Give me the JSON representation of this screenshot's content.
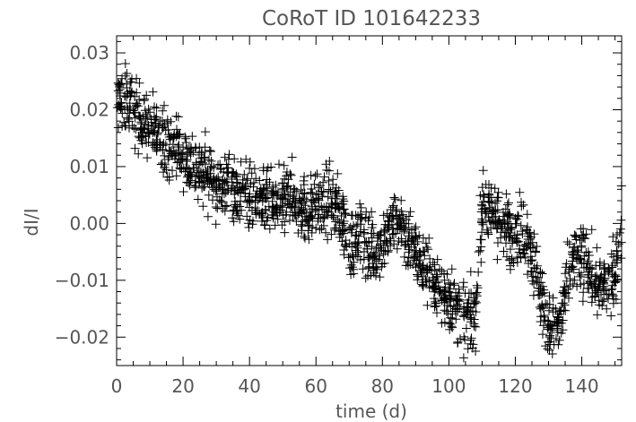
{
  "chart_data": {
    "type": "scatter",
    "title": "CoRoT ID 101642233",
    "xlabel": "time (d)",
    "ylabel": "dI/I",
    "xlim": [
      0,
      152
    ],
    "ylim": [
      -0.025,
      0.033
    ],
    "xticks": [
      0,
      20,
      40,
      60,
      80,
      100,
      120,
      140
    ],
    "xtick_labels": [
      "0",
      "20",
      "40",
      "60",
      "80",
      "100",
      "120",
      "140"
    ],
    "yticks": [
      -0.02,
      -0.01,
      0.0,
      0.01,
      0.02,
      0.03
    ],
    "ytick_labels": [
      "−0.02",
      "−0.01",
      "0.00",
      "0.01",
      "0.02",
      "0.03"
    ],
    "marker": "plus",
    "color": "#000000",
    "grid": false,
    "series": [
      {
        "x": [
          0,
          2,
          4,
          6,
          8,
          10,
          12,
          14,
          16,
          18,
          20,
          22,
          24,
          26,
          28,
          30,
          32,
          34,
          36,
          38,
          40,
          42,
          44,
          46,
          48,
          50,
          52,
          54,
          56,
          58,
          60,
          62,
          64,
          66,
          68,
          70,
          72,
          74,
          76,
          78,
          80,
          82,
          84,
          86,
          88,
          90,
          92,
          94,
          96,
          98,
          100,
          102,
          104,
          106,
          108,
          110,
          112,
          114,
          116,
          118,
          120,
          122,
          124,
          126,
          128,
          130,
          132,
          134,
          136,
          138,
          140,
          142,
          144,
          146,
          148,
          150,
          152
        ],
        "y": [
          0.021,
          0.022,
          0.021,
          0.019,
          0.018,
          0.017,
          0.016,
          0.015,
          0.014,
          0.013,
          0.012,
          0.011,
          0.01,
          0.009,
          0.008,
          0.007,
          0.007,
          0.007,
          0.006,
          0.005,
          0.005,
          0.004,
          0.004,
          0.003,
          0.003,
          0.004,
          0.005,
          0.004,
          0.003,
          0.002,
          0.003,
          0.003,
          0.004,
          0.003,
          0.001,
          -0.004,
          -0.003,
          -0.002,
          -0.004,
          -0.005,
          -0.003,
          -0.001,
          0.0,
          0.0,
          -0.003,
          -0.005,
          -0.007,
          -0.009,
          -0.011,
          -0.012,
          -0.013,
          -0.015,
          -0.016,
          -0.017,
          -0.016,
          0.002,
          0.003,
          0.001,
          0.0,
          -0.001,
          -0.002,
          -0.001,
          -0.003,
          -0.007,
          -0.014,
          -0.018,
          -0.019,
          -0.017,
          -0.009,
          -0.006,
          -0.006,
          -0.008,
          -0.01,
          -0.012,
          -0.011,
          -0.01,
          0.002
        ]
      }
    ]
  }
}
